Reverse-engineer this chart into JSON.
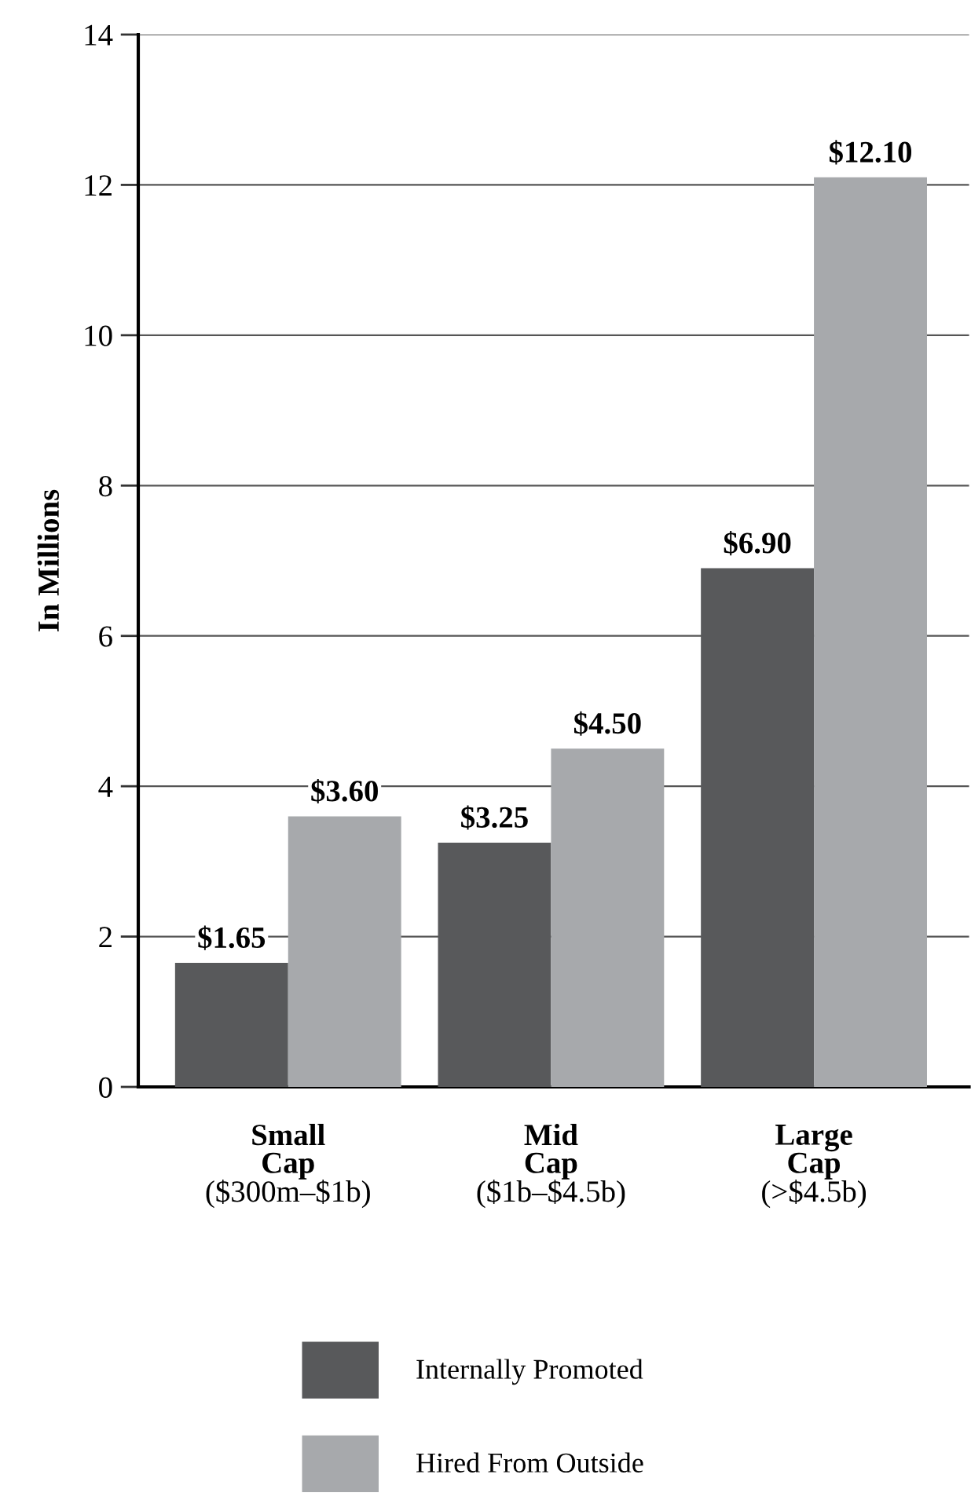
{
  "chart_data": {
    "type": "bar",
    "ylabel": "In Millions",
    "categories": [
      "Small\nCap\n($300m–$1b)",
      "Mid\nCap\n($1b–$4.5b)",
      "Large\nCap\n(>$4.5b)"
    ],
    "series": [
      {
        "name": "Internally Promoted",
        "color": "#58595b",
        "values": [
          1.65,
          3.25,
          6.9
        ],
        "value_labels": [
          "$1.65",
          "$3.25",
          "$6.90"
        ]
      },
      {
        "name": "Hired From Outside",
        "color": "#a7a9ac",
        "values": [
          3.6,
          4.5,
          12.1
        ],
        "value_labels": [
          "$3.60",
          "$4.50",
          "$12.10"
        ]
      }
    ],
    "ylim": [
      0,
      14
    ],
    "yticks": [
      0,
      2,
      4,
      6,
      8,
      10,
      12,
      14
    ],
    "grid": "y",
    "legend": "bottom"
  }
}
